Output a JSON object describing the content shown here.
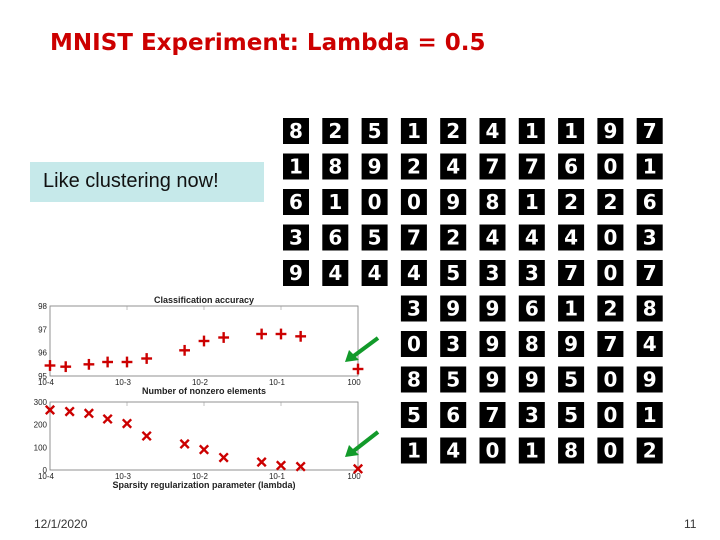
{
  "slide": {
    "title": "MNIST Experiment: Lambda = 0.5",
    "callout": "Like clustering now!",
    "date": "12/1/2020",
    "page_number": "11"
  },
  "digit_grid": {
    "columns": 10,
    "visible_rows": [
      [
        "8",
        "2",
        "5",
        "1",
        "2",
        "4",
        "1",
        "1",
        "9",
        "7"
      ],
      [
        "1",
        "8",
        "9",
        "2",
        "4",
        "7",
        "7",
        "6",
        "0",
        "1"
      ],
      [
        "6",
        "1",
        "0",
        "0",
        "9",
        "8",
        "1",
        "2",
        "2",
        "6"
      ],
      [
        "3",
        "6",
        "5",
        "7",
        "2",
        "4",
        "4",
        "4",
        "0",
        "3"
      ],
      [
        "9",
        "4",
        "4",
        "4",
        "5",
        "3",
        "3",
        "7",
        "0",
        "7"
      ],
      [
        "",
        "",
        "",
        "",
        "3",
        "9",
        "9",
        "6",
        "1",
        "2",
        "8"
      ],
      [
        "",
        "",
        "",
        "",
        "0",
        "3",
        "9",
        "8",
        "9",
        "7",
        "4"
      ],
      [
        "",
        "",
        "",
        "",
        "8",
        "5",
        "9",
        "9",
        "5",
        "0",
        "9"
      ],
      [
        "",
        "",
        "",
        "",
        "5",
        "6",
        "7",
        "3",
        "5",
        "0",
        "1"
      ],
      [
        "",
        "",
        "",
        "",
        "1",
        "4",
        "0",
        "1",
        "8",
        "0",
        "2"
      ]
    ],
    "tile_color": "#000000",
    "digit_color": "#ffffff",
    "arrow_color": "#129a2a"
  },
  "chart_data": [
    {
      "type": "scatter",
      "title": "Classification accuracy",
      "xlabel": "Number of nonzero elements",
      "x_scale": "log",
      "xlim": [
        0.0001,
        1
      ],
      "x_ticks": [
        "10-4",
        "10-3",
        "10-2",
        "10-1",
        "100"
      ],
      "x_tick_values": [
        0.0001,
        0.001,
        0.01,
        0.1,
        1
      ],
      "ylim": [
        95,
        98
      ],
      "y_ticks": [
        "95",
        "96",
        "97",
        "98"
      ],
      "y_tick_values": [
        95,
        96,
        97,
        98
      ],
      "marker": "+",
      "color": "#cc0000",
      "x": [
        0.0001,
        0.00016,
        0.00032,
        0.00056,
        0.001,
        0.0018,
        0.0056,
        0.01,
        0.018,
        0.056,
        0.1,
        0.18,
        1
      ],
      "y": [
        95.45,
        95.4,
        95.5,
        95.6,
        95.6,
        95.75,
        96.1,
        96.5,
        96.65,
        96.8,
        96.8,
        96.7,
        95.3
      ]
    },
    {
      "type": "scatter",
      "title": "",
      "xlabel": "Sparsity regularization parameter (lambda)",
      "x_scale": "log",
      "xlim": [
        0.0001,
        1
      ],
      "x_ticks": [
        "10-4",
        "10-3",
        "10-2",
        "10-1",
        "100"
      ],
      "x_tick_values": [
        0.0001,
        0.001,
        0.01,
        0.1,
        1
      ],
      "ylim": [
        0,
        300
      ],
      "y_ticks": [
        "0",
        "100",
        "200",
        "300"
      ],
      "y_tick_values": [
        0,
        100,
        200,
        300
      ],
      "marker": "x",
      "color": "#cc0000",
      "x": [
        0.0001,
        0.00018,
        0.00032,
        0.00056,
        0.001,
        0.0018,
        0.0056,
        0.01,
        0.018,
        0.056,
        0.1,
        0.18,
        1
      ],
      "y": [
        265,
        258,
        250,
        225,
        205,
        150,
        115,
        90,
        55,
        35,
        20,
        15,
        5
      ]
    }
  ]
}
